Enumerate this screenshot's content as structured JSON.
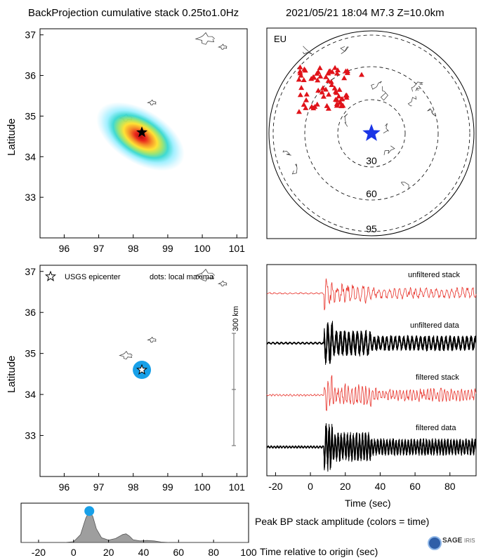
{
  "header": {
    "title": "BackProjection cumulative stack 0.25to1.0Hz",
    "event": "2021/05/21 18:04  M7.3  Z=10.0km"
  },
  "colors": {
    "stack": "#e8322a",
    "data": "#000000",
    "star": "#1a35e6",
    "station": "#e0131a",
    "dot": "#18a0e8",
    "area": "#9e9e9e"
  },
  "chart_data": [
    {
      "type": "heatmap",
      "name": "cumulative-stack-map",
      "ylabel": "Latitude",
      "xlim": [
        95.3,
        101.3
      ],
      "ylim": [
        32.0,
        37.15
      ],
      "xticks": [
        96,
        97,
        98,
        99,
        100,
        101
      ],
      "yticks": [
        33,
        34,
        35,
        36,
        37
      ],
      "peak": {
        "lon": 98.25,
        "lat": 34.6
      },
      "epicenter": {
        "lon": 98.25,
        "lat": 34.6
      }
    },
    {
      "type": "scatter",
      "name": "station-map",
      "label": "EU",
      "rings": [
        "30",
        "60",
        "95"
      ],
      "epicenter_marker": "star",
      "station_marker": "triangle"
    },
    {
      "type": "scatter",
      "name": "local-maxima-map",
      "ylabel": "Latitude",
      "xlim": [
        95.3,
        101.3
      ],
      "ylim": [
        32.0,
        37.15
      ],
      "xticks": [
        96,
        97,
        98,
        99,
        100,
        101
      ],
      "yticks": [
        33,
        34,
        35,
        36,
        37
      ],
      "legend": {
        "star": "USGS epicenter",
        "dots": "dots: local maxima"
      },
      "scale_label": "300 km",
      "maxima": [
        {
          "lon": 98.25,
          "lat": 34.6,
          "t": 9
        }
      ],
      "epicenter": {
        "lon": 98.25,
        "lat": 34.6
      }
    },
    {
      "type": "line",
      "name": "waveforms",
      "xlabel": "Time (sec)",
      "xlim": [
        -25,
        95
      ],
      "xticks": [
        -20,
        0,
        20,
        40,
        60,
        80
      ],
      "traces": [
        "unfiltered stack",
        "unfiltered data",
        "filtered stack",
        "filtered data"
      ]
    },
    {
      "type": "area",
      "name": "peak-amplitude",
      "title": "Peak BP stack amplitude (colors = time)",
      "xlabel": "Time relative to origin (sec)",
      "xlim": [
        -30,
        100
      ],
      "xticks": [
        -20,
        0,
        20,
        40,
        60,
        80,
        100
      ],
      "x": [
        -30,
        -5,
        0,
        4,
        7,
        9,
        11,
        13,
        16,
        20,
        24,
        28,
        30,
        32,
        34,
        38,
        42,
        46,
        50,
        55,
        100
      ],
      "y": [
        0,
        0,
        0.02,
        0.2,
        0.62,
        0.8,
        0.66,
        0.35,
        0.12,
        0.06,
        0.1,
        0.2,
        0.22,
        0.16,
        0.07,
        0.04,
        0.05,
        0.04,
        0.01,
        0,
        0
      ],
      "ylim": [
        0,
        1
      ],
      "peak_marker": {
        "x": 9,
        "y": 0.8
      }
    }
  ],
  "footer": {
    "logo_text": "SAGE",
    "logo_sub": "IRIS"
  }
}
